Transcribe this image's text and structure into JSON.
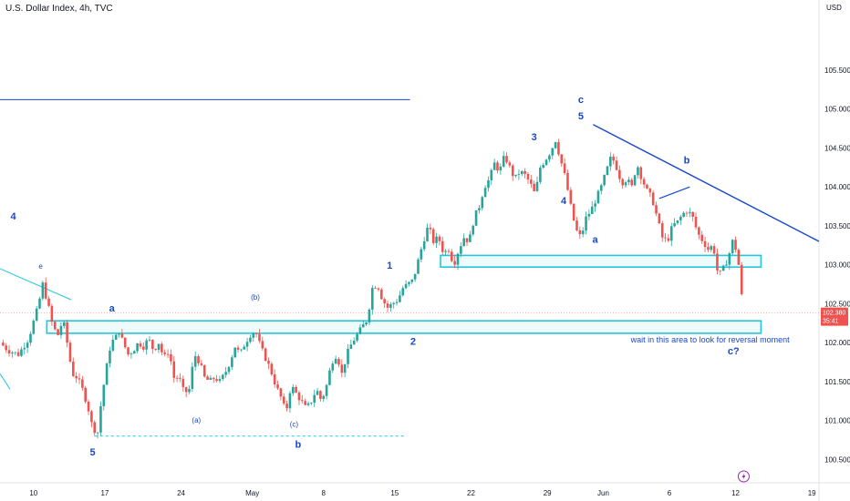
{
  "header": {
    "title": "U.S. Dollar Index, 4h, TVC",
    "currency": "USD"
  },
  "colors": {
    "up": "#26a69a",
    "down": "#ef5350",
    "annotation": "#1848cc",
    "zone": "#26c6da",
    "price_badge": "#ef5350"
  },
  "icons": {
    "flash": "lightning-icon"
  },
  "chart_data": {
    "type": "candlestick",
    "ylim": [
      100.2,
      106.4
    ],
    "y_ticks": [
      "105.500",
      "105.000",
      "104.500",
      "104.000",
      "103.500",
      "103.000",
      "102.500",
      "102.000",
      "101.500",
      "101.000",
      "100.500"
    ],
    "y_tick_values": [
      105.5,
      105.0,
      104.5,
      104.0,
      103.5,
      103.0,
      102.5,
      102.0,
      101.5,
      101.0,
      100.5
    ],
    "x_ticks": [
      "10",
      "17",
      "24",
      "May",
      "8",
      "15",
      "22",
      "29",
      "Jun",
      "6",
      "12",
      "19"
    ],
    "x_tick_positions": [
      0.0,
      7.0,
      14.5,
      21.5,
      28.5,
      35.5,
      43.0,
      50.5,
      56.0,
      62.5,
      69.0,
      76.5
    ],
    "x_range": [
      -3.3,
      77.2
    ],
    "current_price": "102.380",
    "countdown": "35:41",
    "close_path": [
      [
        -3.3,
        102.0
      ],
      [
        -2.5,
        101.9
      ],
      [
        -1.5,
        101.85
      ],
      [
        -0.5,
        102.05
      ],
      [
        0.3,
        102.4
      ],
      [
        0.5,
        102.5
      ],
      [
        0.9,
        102.75
      ],
      [
        1.4,
        102.5
      ],
      [
        1.9,
        102.2
      ],
      [
        2.4,
        102.1
      ],
      [
        2.9,
        102.3
      ],
      [
        3.3,
        102.0
      ],
      [
        3.8,
        101.6
      ],
      [
        4.3,
        101.55
      ],
      [
        4.8,
        101.4
      ],
      [
        5.3,
        101.2
      ],
      [
        5.8,
        100.9
      ],
      [
        6.3,
        100.85
      ],
      [
        6.7,
        101.3
      ],
      [
        7.2,
        101.7
      ],
      [
        7.6,
        102.0
      ],
      [
        8.0,
        102.05
      ],
      [
        8.4,
        102.15
      ],
      [
        8.8,
        102.0
      ],
      [
        9.3,
        101.85
      ],
      [
        9.8,
        101.9
      ],
      [
        10.3,
        102.0
      ],
      [
        10.8,
        101.95
      ],
      [
        11.3,
        102.05
      ],
      [
        11.8,
        101.9
      ],
      [
        12.3,
        102.0
      ],
      [
        12.8,
        101.8
      ],
      [
        13.3,
        101.9
      ],
      [
        13.8,
        101.55
      ],
      [
        14.3,
        101.55
      ],
      [
        14.8,
        101.35
      ],
      [
        15.3,
        101.4
      ],
      [
        15.8,
        101.85
      ],
      [
        16.3,
        101.75
      ],
      [
        16.8,
        101.55
      ],
      [
        17.3,
        101.5
      ],
      [
        17.8,
        101.55
      ],
      [
        18.3,
        101.5
      ],
      [
        18.8,
        101.6
      ],
      [
        19.3,
        101.75
      ],
      [
        19.8,
        101.95
      ],
      [
        20.3,
        101.85
      ],
      [
        20.8,
        102.0
      ],
      [
        21.3,
        102.1
      ],
      [
        21.8,
        102.15
      ],
      [
        22.3,
        101.95
      ],
      [
        22.8,
        101.8
      ],
      [
        23.3,
        101.65
      ],
      [
        23.8,
        101.45
      ],
      [
        24.3,
        101.3
      ],
      [
        24.8,
        101.1
      ],
      [
        25.3,
        101.45
      ],
      [
        25.8,
        101.35
      ],
      [
        26.3,
        101.25
      ],
      [
        26.8,
        101.15
      ],
      [
        27.3,
        101.25
      ],
      [
        27.8,
        101.4
      ],
      [
        28.3,
        101.25
      ],
      [
        28.8,
        101.45
      ],
      [
        29.3,
        101.75
      ],
      [
        29.8,
        101.85
      ],
      [
        30.3,
        101.6
      ],
      [
        30.8,
        101.85
      ],
      [
        31.3,
        102.0
      ],
      [
        31.8,
        102.1
      ],
      [
        32.3,
        102.2
      ],
      [
        32.8,
        102.3
      ],
      [
        33.3,
        102.7
      ],
      [
        33.8,
        102.75
      ],
      [
        34.3,
        102.55
      ],
      [
        34.8,
        102.45
      ],
      [
        35.3,
        102.5
      ],
      [
        35.8,
        102.55
      ],
      [
        36.3,
        102.7
      ],
      [
        36.8,
        102.75
      ],
      [
        37.3,
        102.8
      ],
      [
        37.8,
        103.05
      ],
      [
        38.3,
        103.3
      ],
      [
        38.8,
        103.5
      ],
      [
        39.3,
        103.3
      ],
      [
        39.8,
        103.35
      ],
      [
        40.3,
        103.15
      ],
      [
        40.8,
        103.2
      ],
      [
        41.3,
        103.0
      ],
      [
        41.8,
        103.2
      ],
      [
        42.3,
        103.35
      ],
      [
        42.8,
        103.3
      ],
      [
        43.3,
        103.6
      ],
      [
        43.8,
        103.75
      ],
      [
        44.3,
        104.0
      ],
      [
        44.8,
        104.1
      ],
      [
        45.3,
        104.3
      ],
      [
        45.8,
        104.2
      ],
      [
        46.3,
        104.4
      ],
      [
        46.8,
        104.25
      ],
      [
        47.3,
        104.1
      ],
      [
        47.8,
        104.2
      ],
      [
        48.3,
        104.15
      ],
      [
        48.8,
        104.05
      ],
      [
        49.3,
        103.9
      ],
      [
        49.8,
        104.25
      ],
      [
        50.3,
        104.35
      ],
      [
        50.8,
        104.45
      ],
      [
        51.3,
        104.6
      ],
      [
        51.8,
        104.35
      ],
      [
        52.3,
        104.1
      ],
      [
        52.8,
        103.75
      ],
      [
        53.3,
        103.45
      ],
      [
        53.8,
        103.35
      ],
      [
        54.3,
        103.6
      ],
      [
        54.8,
        103.7
      ],
      [
        55.3,
        103.85
      ],
      [
        55.8,
        104.0
      ],
      [
        56.3,
        104.2
      ],
      [
        56.8,
        104.4
      ],
      [
        57.3,
        104.25
      ],
      [
        57.8,
        104.05
      ],
      [
        58.3,
        104.1
      ],
      [
        58.8,
        104.0
      ],
      [
        59.3,
        104.3
      ],
      [
        59.8,
        104.1
      ],
      [
        60.3,
        103.95
      ],
      [
        60.8,
        103.85
      ],
      [
        61.3,
        103.6
      ],
      [
        61.8,
        103.35
      ],
      [
        62.3,
        103.3
      ],
      [
        62.8,
        103.5
      ],
      [
        63.3,
        103.55
      ],
      [
        63.8,
        103.65
      ],
      [
        64.3,
        103.7
      ],
      [
        64.8,
        103.6
      ],
      [
        65.3,
        103.4
      ],
      [
        65.8,
        103.3
      ],
      [
        66.3,
        103.2
      ],
      [
        66.8,
        103.25
      ],
      [
        67.3,
        102.85
      ],
      [
        67.8,
        102.95
      ],
      [
        68.3,
        103.1
      ],
      [
        68.8,
        103.35
      ],
      [
        69.3,
        103.0
      ],
      [
        69.6,
        102.6
      ],
      [
        69.8,
        102.38
      ]
    ],
    "resistance_line": {
      "x1": 55.0,
      "y1": 104.8,
      "x2": 77.2,
      "y2": 103.3
    },
    "minor_trendline": {
      "x1": 61.5,
      "y1": 103.85,
      "x2": 64.5,
      "y2": 104.0
    },
    "left_trendline": {
      "x1": -3.3,
      "y1": 102.95,
      "x2": 3.7,
      "y2": 102.55
    },
    "left_trendline_low": {
      "x1": -3.3,
      "y1": 101.6,
      "x2": -2.3,
      "y2": 101.4
    },
    "upper_hline": {
      "x1": -3.3,
      "x2": 37.0,
      "y": 105.12
    },
    "support_dotted": {
      "x1": 6.0,
      "x2": 36.5,
      "y": 100.8
    },
    "zones": [
      {
        "x1": 1.3,
        "x2": 71.5,
        "y_top": 102.28,
        "y_bottom": 102.12
      },
      {
        "x1": 40.0,
        "x2": 71.5,
        "y_top": 103.12,
        "y_bottom": 102.97
      }
    ],
    "wave_labels": [
      {
        "text": "4",
        "x": -2.0,
        "y": 103.58,
        "size": "big"
      },
      {
        "text": "e",
        "x": 0.7,
        "y": 102.95,
        "size": "small"
      },
      {
        "text": "a",
        "x": 7.7,
        "y": 102.4,
        "size": "normal"
      },
      {
        "text": "5",
        "x": 5.8,
        "y": 100.55,
        "size": "big"
      },
      {
        "text": "(b)",
        "x": 21.8,
        "y": 102.55,
        "size": "small"
      },
      {
        "text": "(a)",
        "x": 16.0,
        "y": 100.97,
        "size": "small"
      },
      {
        "text": "(c)",
        "x": 25.6,
        "y": 100.92,
        "size": "small"
      },
      {
        "text": "b",
        "x": 26.0,
        "y": 100.65,
        "size": "normal"
      },
      {
        "text": "1",
        "x": 35.0,
        "y": 102.95,
        "size": "normal"
      },
      {
        "text": "2",
        "x": 37.3,
        "y": 101.97,
        "size": "normal"
      },
      {
        "text": "3",
        "x": 49.2,
        "y": 104.6,
        "size": "normal"
      },
      {
        "text": "4",
        "x": 52.1,
        "y": 103.78,
        "size": "normal"
      },
      {
        "text": "c",
        "x": 53.8,
        "y": 105.08,
        "size": "normal"
      },
      {
        "text": "5",
        "x": 53.8,
        "y": 104.87,
        "size": "big"
      },
      {
        "text": "a",
        "x": 55.2,
        "y": 103.28,
        "size": "normal"
      },
      {
        "text": "b",
        "x": 64.2,
        "y": 104.3,
        "size": "normal"
      },
      {
        "text": "c?",
        "x": 68.8,
        "y": 101.85,
        "size": "normal"
      }
    ],
    "annotation": {
      "text": "wait in this area to look for reversal moment",
      "x": 66.5,
      "y": 102.0
    }
  }
}
